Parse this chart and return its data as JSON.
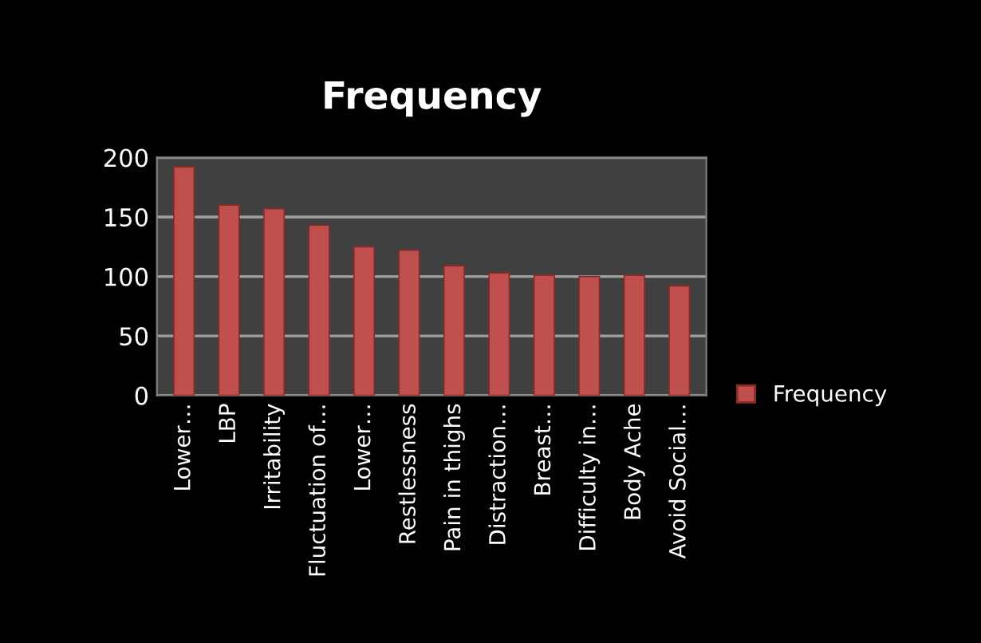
{
  "chart_data": {
    "type": "bar",
    "title": "Frequency",
    "categories": [
      "Lower…",
      "LBP",
      "Irritability",
      "Fluctuation of…",
      "Lower…",
      "Restlessness",
      "Pain in thighs",
      "Distraction…",
      "Breast…",
      "Difficulty in…",
      "Body Ache",
      "Avoid Social…"
    ],
    "series": [
      {
        "name": "Frequency",
        "color": "#c0504d",
        "values": [
          192,
          160,
          157,
          143,
          125,
          122,
          109,
          103,
          101,
          100,
          101,
          92
        ]
      }
    ],
    "ylim": [
      0,
      200
    ],
    "yticks": [
      0,
      50,
      100,
      150,
      200
    ],
    "grid": "y",
    "legend": "right"
  }
}
